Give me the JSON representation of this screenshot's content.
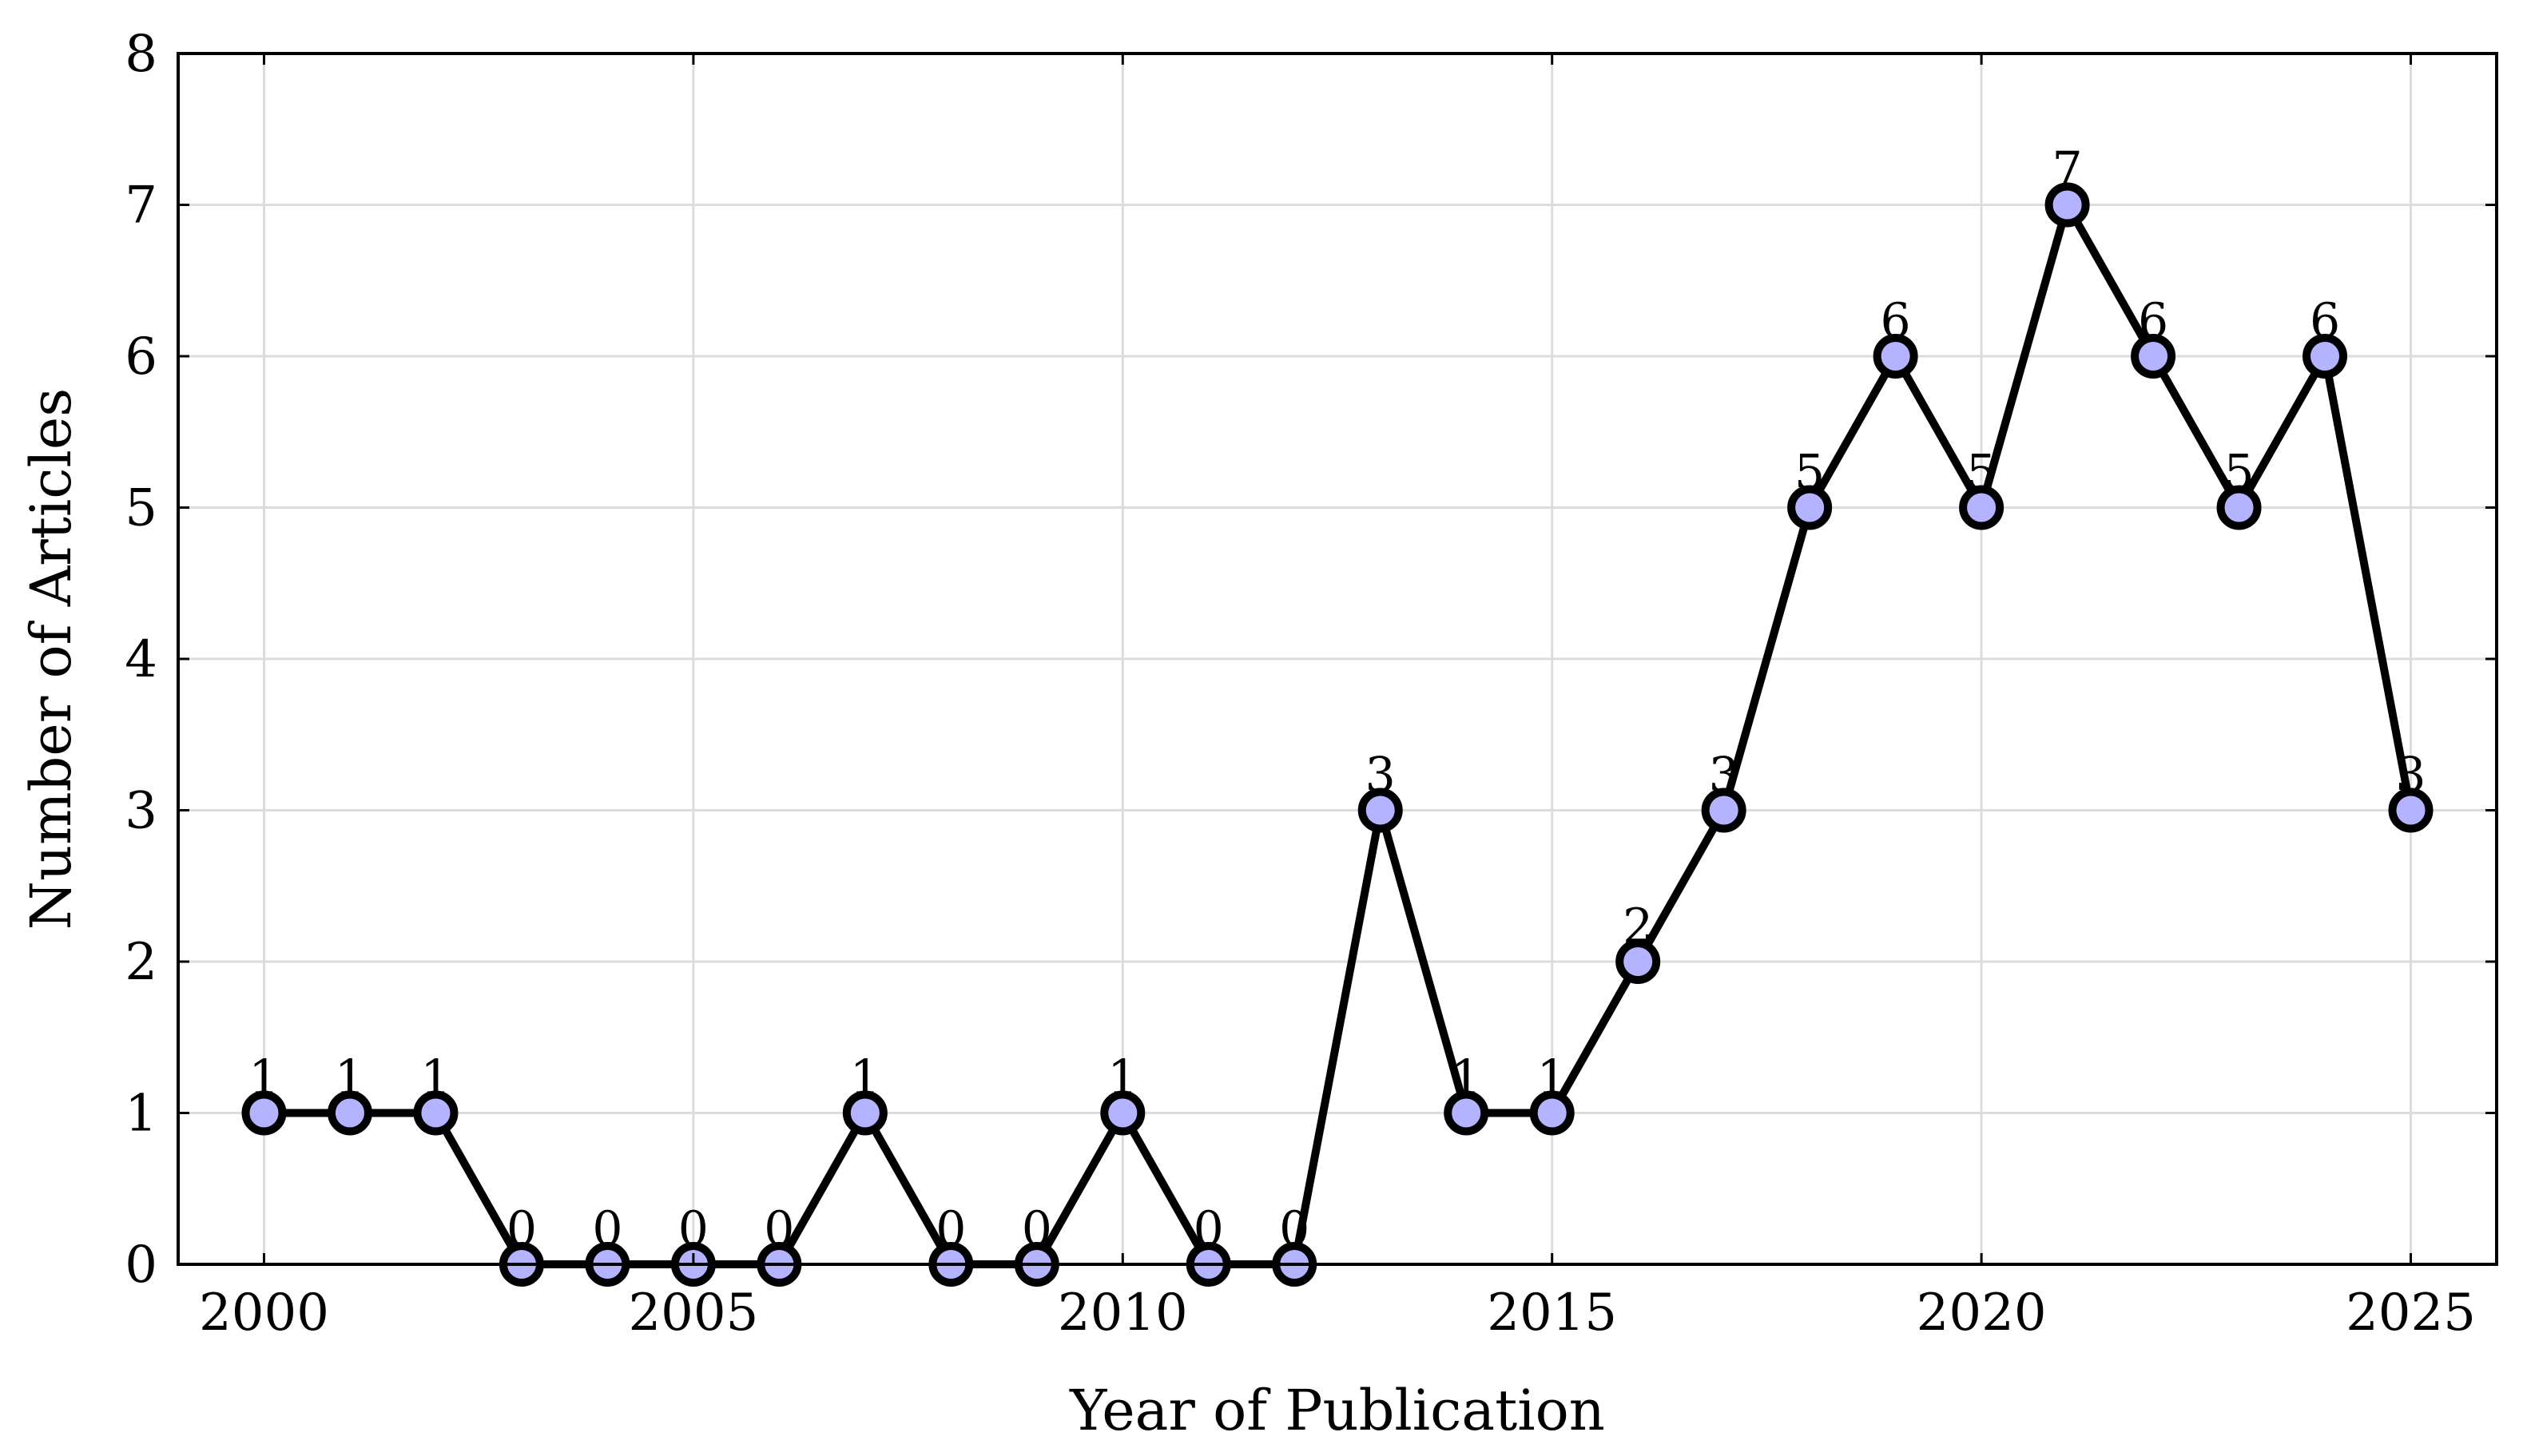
{
  "chart_data": {
    "type": "line",
    "title": "",
    "xlabel": "Year of Publication",
    "ylabel": "Number of Articles",
    "x": [
      2000,
      2001,
      2002,
      2003,
      2004,
      2005,
      2006,
      2007,
      2008,
      2009,
      2010,
      2011,
      2012,
      2013,
      2014,
      2015,
      2016,
      2017,
      2018,
      2019,
      2020,
      2021,
      2022,
      2023,
      2024,
      2025
    ],
    "series": [
      {
        "values": [
          1,
          1,
          1,
          0,
          0,
          0,
          0,
          1,
          0,
          0,
          1,
          0,
          0,
          3,
          1,
          1,
          2,
          3,
          5,
          6,
          5,
          7,
          6,
          5,
          6,
          3
        ],
        "line_color": "#000000",
        "marker_fill": "#b3b3ff",
        "marker_edge": "#000000"
      }
    ],
    "xlim": [
      1999,
      2026
    ],
    "ylim": [
      0,
      8
    ],
    "xticks": [
      2000,
      2005,
      2010,
      2015,
      2020,
      2025
    ],
    "yticks": [
      0,
      1,
      2,
      3,
      4,
      5,
      6,
      7,
      8
    ],
    "grid": true,
    "data_labels": true,
    "legend": "none"
  }
}
